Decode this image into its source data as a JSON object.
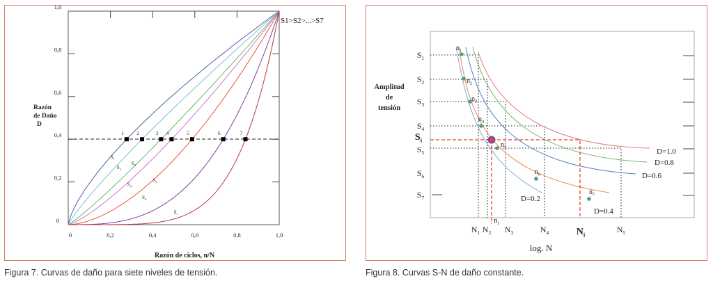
{
  "figure7": {
    "caption": "Figura 7. Curvas de daño para siete niveles de tensión.",
    "chart_data": {
      "type": "line",
      "xlabel": "Razón de ciclos, n/N",
      "ylabel": [
        "Razón",
        "de Daño",
        "D"
      ],
      "xlim": [
        0,
        1.0
      ],
      "ylim": [
        0,
        1.0
      ],
      "xticks": [
        "0",
        "0,2",
        "0,4",
        "0,6",
        "0,8",
        "1,0"
      ],
      "yticks": [
        "0",
        "0,2",
        "0,4",
        "0,6",
        "0,8",
        "1,0"
      ],
      "annotation": "S1>S2>...>S7",
      "reference_damage": 0.4,
      "series": [
        {
          "name": "S1",
          "n_over_N_at_ref": 0.277,
          "color": "#5a5aaa"
        },
        {
          "name": "S2",
          "n_over_N_at_ref": 0.35,
          "color": "#70c4dc"
        },
        {
          "name": "S3",
          "n_over_N_at_ref": 0.44,
          "color": "#6cb46c"
        },
        {
          "name": "S4",
          "n_over_N_at_ref": 0.49,
          "color": "#c878c8"
        },
        {
          "name": "S5",
          "n_over_N_at_ref": 0.587,
          "color": "#e8553a"
        },
        {
          "name": "S6",
          "n_over_N_at_ref": 0.735,
          "color": "#7a3f9e"
        },
        {
          "name": "S7",
          "n_over_N_at_ref": 0.84,
          "color": "#b23a3a"
        }
      ],
      "points": [
        "1",
        "2",
        "3",
        "4",
        "5",
        "6",
        "7"
      ]
    }
  },
  "figure8": {
    "caption": "Figura 8. Curvas S-N de daño constante.",
    "ylabel": [
      "Amplitud",
      "de",
      "tensión"
    ],
    "xlabel": "log. N",
    "stress_levels": [
      {
        "base": "S",
        "sub": "1"
      },
      {
        "base": "S",
        "sub": "2"
      },
      {
        "base": "S",
        "sub": "3"
      },
      {
        "base": "S",
        "sub": "4"
      },
      {
        "base": "S",
        "sub": "5"
      },
      {
        "base": "S",
        "sub": "6"
      },
      {
        "base": "S",
        "sub": "7"
      }
    ],
    "si_label": {
      "base": "S",
      "sub": "i"
    },
    "cycle_labels": [
      {
        "base": "N",
        "sub": "1"
      },
      {
        "base": "N",
        "sub": "2"
      },
      {
        "base": "N",
        "sub": "3"
      },
      {
        "base": "N",
        "sub": "4"
      },
      {
        "base": "N",
        "sub": "5"
      }
    ],
    "ni_label": {
      "base": "n",
      "sub": "i"
    },
    "Ni_label": {
      "base": "N",
      "sub": "i"
    },
    "point_labels": [
      {
        "base": "n",
        "sub": "1"
      },
      {
        "base": "n",
        "sub": "2"
      },
      {
        "base": "n",
        "sub": "3"
      },
      {
        "base": "n",
        "sub": "4"
      },
      {
        "base": "n",
        "sub": "5"
      },
      {
        "base": "n",
        "sub": "6"
      },
      {
        "base": "n",
        "sub": "7"
      }
    ],
    "curves": [
      {
        "label": "D=0.2",
        "color": "#7aaed6"
      },
      {
        "label": "D=0.4",
        "color": "#ef8a4c"
      },
      {
        "label": "D=0.6",
        "color": "#4f7fc4"
      },
      {
        "label": "D=0.8",
        "color": "#6fb86f"
      },
      {
        "label": "D=1.0",
        "color": "#e07a86"
      }
    ],
    "highlight_color": "#e8402a",
    "point_color": "#4f9e82"
  }
}
